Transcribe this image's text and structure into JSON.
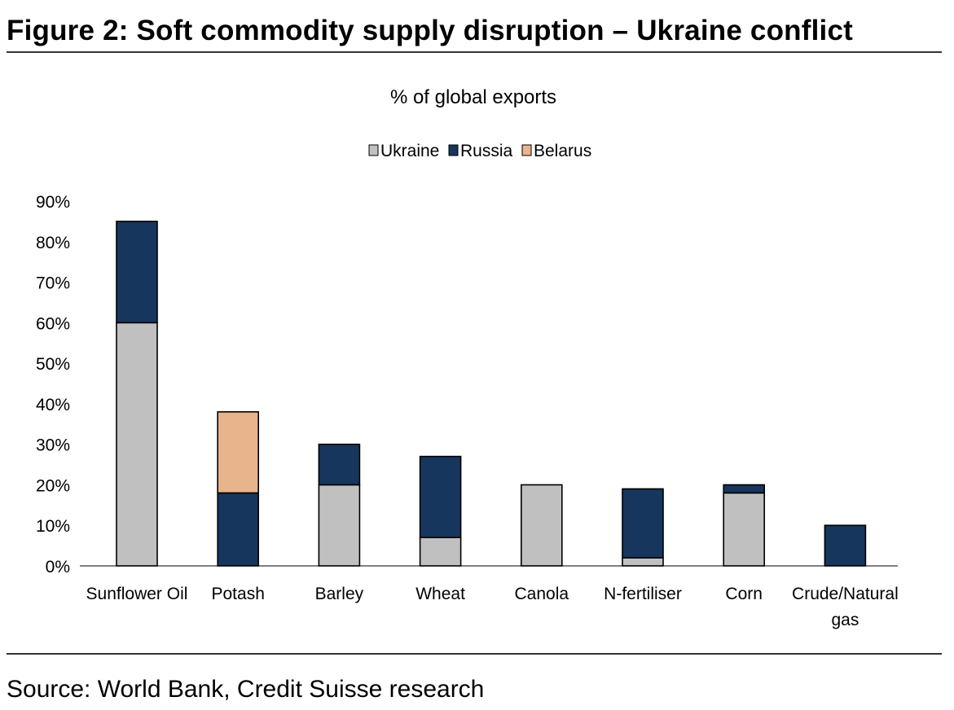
{
  "figure": {
    "title": "Figure 2: Soft commodity supply disruption – Ukraine conflict",
    "source": "Source: World Bank, Credit Suisse research"
  },
  "chart_data": {
    "type": "bar",
    "stacked": true,
    "title": "% of global exports",
    "xlabel": "",
    "ylabel": "",
    "ylim": [
      0,
      90
    ],
    "yticks": [
      "0%",
      "10%",
      "20%",
      "30%",
      "40%",
      "50%",
      "60%",
      "70%",
      "80%",
      "90%"
    ],
    "grid": false,
    "legend_position": "top-center",
    "categories": [
      "Sunflower Oil",
      "Potash",
      "Barley",
      "Wheat",
      "Canola",
      "N-fertiliser",
      "Corn",
      "Crude/Natural gas"
    ],
    "series": [
      {
        "name": "Ukraine",
        "color": "#c0c0c0",
        "values": [
          60,
          0,
          20,
          7,
          20,
          2,
          18,
          0
        ]
      },
      {
        "name": "Russia",
        "color": "#17365d",
        "values": [
          25,
          18,
          10,
          20,
          0,
          17,
          2,
          10
        ]
      },
      {
        "name": "Belarus",
        "color": "#e8b48b",
        "values": [
          0,
          20,
          0,
          0,
          0,
          0,
          0,
          0
        ]
      }
    ]
  }
}
